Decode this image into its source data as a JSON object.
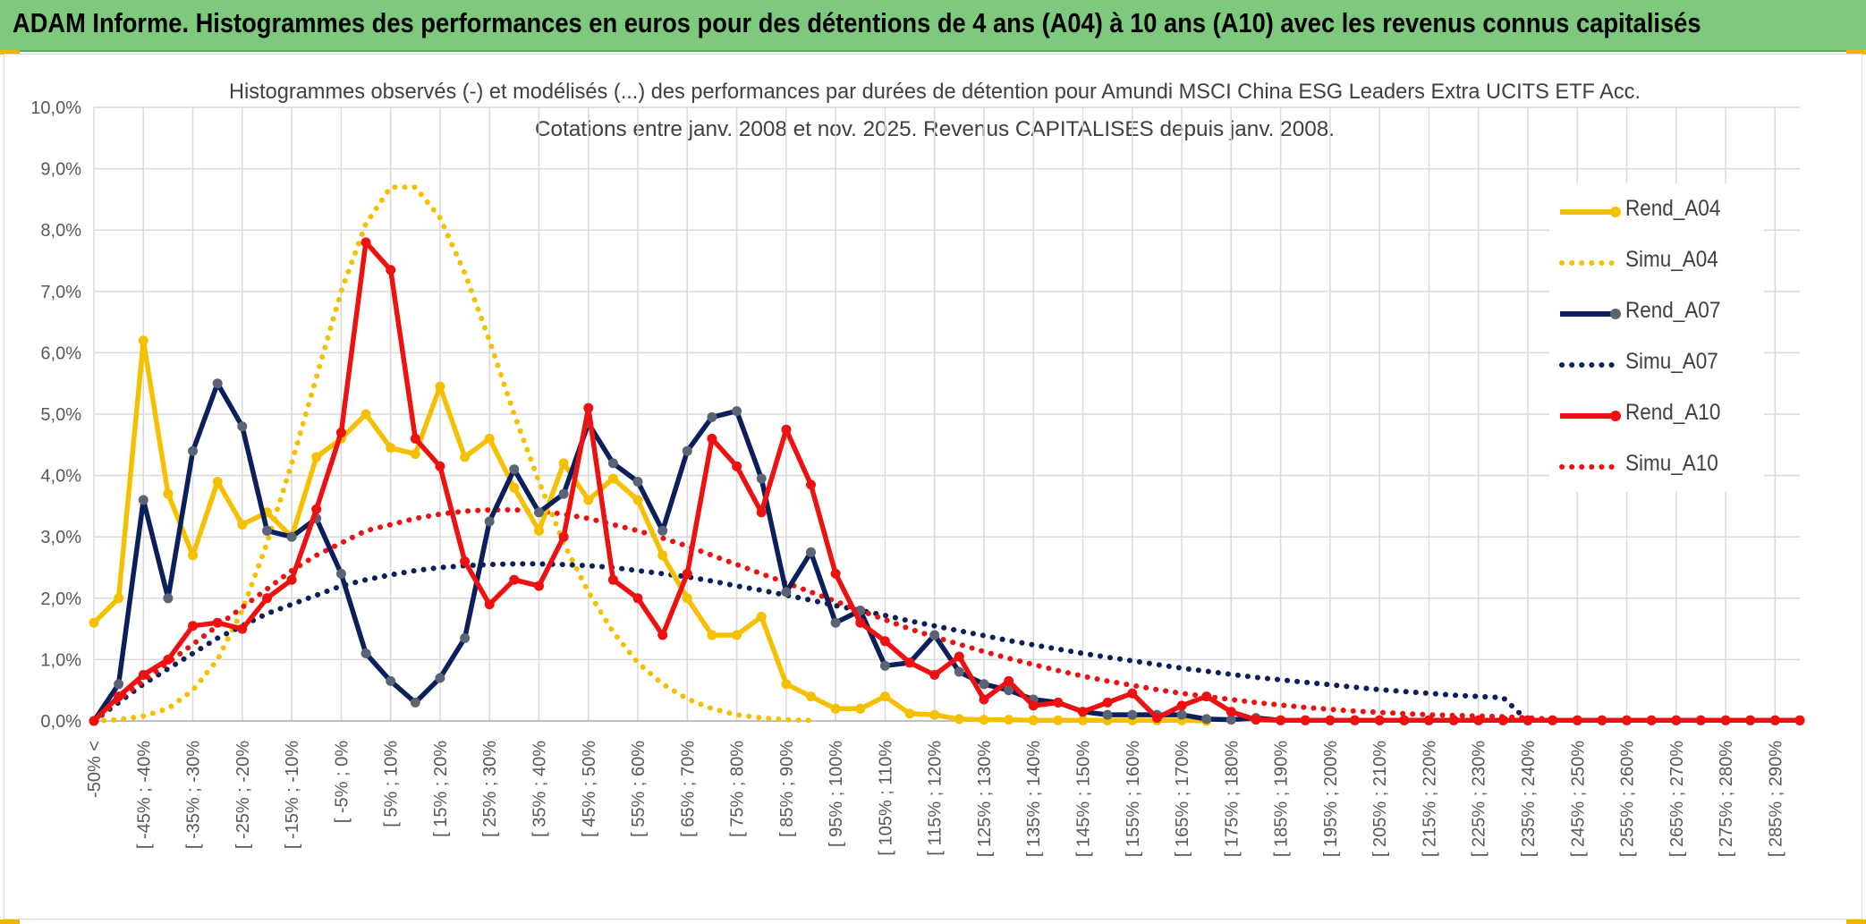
{
  "header": {
    "title": "ADAM Informe. Histogrammes des performances en euros pour des détentions de 4 ans (A04) à 10 ans (A10) avec les revenus connus capitalisés"
  },
  "colors": {
    "header_bg": "#7fc97f",
    "yellow": "#f5c000",
    "navy": "#0b1f5c",
    "navy_marker": "#5a6475",
    "red": "#ee1111"
  },
  "chart_data": {
    "type": "line",
    "title": "Histogrammes observés (-) et modélisés (...) des performances par durées de détention pour Amundi MSCI China ESG Leaders Extra UCITS ETF Acc.",
    "subtitle": "Cotations entre janv. 2008 et nov. 2025. Revenus CAPITALISES depuis janv. 2008.",
    "xlabel": "",
    "ylabel": "",
    "ylim": [
      0,
      10
    ],
    "y_ticks": [
      "0,0%",
      "1,0%",
      "2,0%",
      "3,0%",
      "4,0%",
      "5,0%",
      "6,0%",
      "7,0%",
      "8,0%",
      "9,0%",
      "10,0%"
    ],
    "grid": true,
    "legend_position": "right",
    "x_tick_labels": [
      "-50% <",
      "[ -45% ; -40%",
      "[ -35% ; -30%",
      "[ -25% ; -20%",
      "[ -15% ; -10%",
      "[ -5% ; 0%",
      "[ 5% ; 10%",
      "[ 15% ; 20%",
      "[ 25% ; 30%",
      "[ 35% ; 40%",
      "[ 45% ; 50%",
      "[ 55% ; 60%",
      "[ 65% ; 70%",
      "[ 75% ; 80%",
      "[ 85% ; 90%",
      "[ 95% ; 100%",
      "[ 105% ; 110%",
      "[ 115% ; 120%",
      "[ 125% ; 130%",
      "[ 135% ; 140%",
      "[ 145% ; 150%",
      "[ 155% ; 160%",
      "[ 165% ; 170%",
      "[ 175% ; 180%",
      "[ 185% ; 190%",
      "[ 195% ; 200%",
      "[ 205% ; 210%",
      "[ 215% ; 220%",
      "[ 225% ; 230%",
      "[ 235% ; 240%",
      "[ 245% ; 250%",
      "[ 255% ; 260%",
      "[ 265% ; 270%",
      "[ 275% ; 280%",
      "[ 285% ; 290%"
    ],
    "series": [
      {
        "name": "Rend_A04",
        "style": "solid",
        "color": "#f5c000",
        "values": [
          1.6,
          2.0,
          6.2,
          3.7,
          2.7,
          3.9,
          3.2,
          3.4,
          3.0,
          4.3,
          4.6,
          5.0,
          4.45,
          4.35,
          5.45,
          4.3,
          4.6,
          3.8,
          3.1,
          4.2,
          3.6,
          3.95,
          3.6,
          2.7,
          2.0,
          1.4,
          1.4,
          1.7,
          0.6,
          0.4,
          0.2,
          0.2,
          0.4,
          0.12,
          0.1,
          0.03,
          0.02,
          0.02,
          0.01,
          0.01,
          0.01,
          0.01,
          0.01,
          0.01,
          0.01,
          0.0
        ]
      },
      {
        "name": "Simu_A04",
        "style": "dotted",
        "color": "#f5c000",
        "values": [
          0.0,
          0.02,
          0.08,
          0.2,
          0.5,
          1.0,
          1.8,
          2.9,
          4.2,
          5.6,
          7.0,
          8.1,
          8.7,
          8.7,
          8.2,
          7.3,
          6.2,
          5.0,
          3.9,
          2.9,
          2.1,
          1.45,
          0.95,
          0.6,
          0.36,
          0.2,
          0.1,
          0.05,
          0.02,
          0.01
        ]
      },
      {
        "name": "Rend_A07",
        "style": "solid",
        "color": "#0b1f5c",
        "values": [
          0.0,
          0.6,
          3.6,
          2.0,
          4.4,
          5.5,
          4.8,
          3.1,
          3.0,
          3.3,
          2.4,
          1.1,
          0.65,
          0.3,
          0.7,
          1.35,
          3.25,
          4.1,
          3.4,
          3.7,
          4.85,
          4.2,
          3.9,
          3.1,
          4.4,
          4.95,
          5.05,
          3.95,
          2.1,
          2.75,
          1.6,
          1.8,
          0.9,
          0.95,
          1.4,
          0.8,
          0.6,
          0.5,
          0.35,
          0.3,
          0.15,
          0.1,
          0.1,
          0.1,
          0.1,
          0.03,
          0.02,
          0.05,
          0.01,
          0.01,
          0.01,
          0.01,
          0.01,
          0.01,
          0.01,
          0.01,
          0.01,
          0.01,
          0.01,
          0.01,
          0.01,
          0.01,
          0.01,
          0.01,
          0.01,
          0.01,
          0.01,
          0.01,
          0.01,
          0.01
        ]
      },
      {
        "name": "Simu_A07",
        "style": "dotted",
        "color": "#0b1f5c",
        "values": [
          0.0,
          0.3,
          0.6,
          0.85,
          1.1,
          1.35,
          1.55,
          1.75,
          1.9,
          2.05,
          2.2,
          2.3,
          2.38,
          2.45,
          2.5,
          2.53,
          2.55,
          2.56,
          2.56,
          2.55,
          2.53,
          2.5,
          2.45,
          2.4,
          2.35,
          2.28,
          2.2,
          2.13,
          2.05,
          1.97,
          1.88,
          1.8,
          1.72,
          1.63,
          1.55,
          1.47,
          1.39,
          1.31,
          1.24,
          1.17,
          1.1,
          1.04,
          0.98,
          0.92,
          0.86,
          0.81,
          0.76,
          0.71,
          0.67,
          0.63,
          0.59,
          0.55,
          0.51,
          0.48,
          0.45,
          0.42,
          0.4,
          0.38,
          0.0
        ]
      },
      {
        "name": "Rend_A10",
        "style": "solid",
        "color": "#ee1111",
        "values": [
          0.0,
          0.4,
          0.75,
          1.0,
          1.55,
          1.6,
          1.5,
          2.0,
          2.3,
          3.45,
          4.7,
          7.8,
          7.35,
          4.6,
          4.15,
          2.6,
          1.9,
          2.3,
          2.2,
          3.0,
          5.1,
          2.3,
          2.0,
          1.4,
          2.4,
          4.6,
          4.15,
          3.4,
          4.75,
          3.85,
          2.4,
          1.6,
          1.3,
          0.95,
          0.75,
          1.05,
          0.35,
          0.65,
          0.25,
          0.3,
          0.15,
          0.3,
          0.45,
          0.05,
          0.25,
          0.4,
          0.15,
          0.02,
          0.01,
          0.01,
          0.01,
          0.01,
          0.01,
          0.01,
          0.01,
          0.01,
          0.01,
          0.01,
          0.01,
          0.01,
          0.01,
          0.01,
          0.01,
          0.01,
          0.01,
          0.01,
          0.01,
          0.01,
          0.01,
          0.01
        ]
      },
      {
        "name": "Simu_A10",
        "style": "dotted",
        "color": "#ee1111",
        "values": [
          0.0,
          0.35,
          0.65,
          0.95,
          1.25,
          1.55,
          1.85,
          2.15,
          2.45,
          2.7,
          2.9,
          3.1,
          3.2,
          3.3,
          3.37,
          3.42,
          3.44,
          3.44,
          3.42,
          3.37,
          3.3,
          3.2,
          3.1,
          2.98,
          2.85,
          2.7,
          2.55,
          2.4,
          2.25,
          2.1,
          1.95,
          1.8,
          1.65,
          1.5,
          1.37,
          1.25,
          1.13,
          1.02,
          0.92,
          0.82,
          0.73,
          0.65,
          0.58,
          0.51,
          0.45,
          0.4,
          0.35,
          0.3,
          0.26,
          0.22,
          0.19,
          0.16,
          0.14,
          0.12,
          0.1,
          0.09,
          0.08,
          0.07,
          0.05,
          0.03
        ]
      }
    ]
  }
}
